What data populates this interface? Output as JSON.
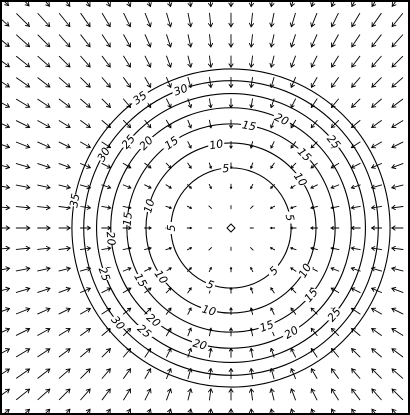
{
  "chart_data": {
    "type": "contour",
    "title": "",
    "xlabel": "",
    "ylabel": "",
    "xlim": [
      -20,
      20
    ],
    "ylim": [
      -20,
      20
    ],
    "center": [
      0,
      0
    ],
    "contour_levels": [
      5,
      10,
      15,
      20,
      25,
      30,
      35
    ],
    "vector_field": {
      "type": "radial-inward",
      "grid_step": 2,
      "description_of_direction": "toward center"
    },
    "contour_labels": [
      {
        "level": 5,
        "text": "5",
        "angles_deg": [
          95,
          10,
          180,
          250,
          315
        ]
      },
      {
        "level": 10,
        "text": "10",
        "angles_deg": [
          100,
          35,
          165,
          215,
          330,
          255
        ]
      },
      {
        "level": 15,
        "text": "15",
        "angles_deg": [
          80,
          45,
          125,
          175,
          210,
          290,
          320
        ]
      },
      {
        "level": 20,
        "text": "20",
        "angles_deg": [
          65,
          135,
          185,
          230,
          255,
          300
        ]
      },
      {
        "level": 25,
        "text": "25",
        "angles_deg": [
          40,
          140,
          200,
          230,
          320
        ]
      },
      {
        "level": 30,
        "text": "30",
        "angles_deg": [
          110,
          150,
          220
        ]
      },
      {
        "level": 35,
        "text": "35",
        "angles_deg": [
          125,
          170
        ]
      }
    ],
    "grid": false,
    "legend": "none",
    "colors": {
      "line": "#000000",
      "background": "#ffffff"
    }
  }
}
